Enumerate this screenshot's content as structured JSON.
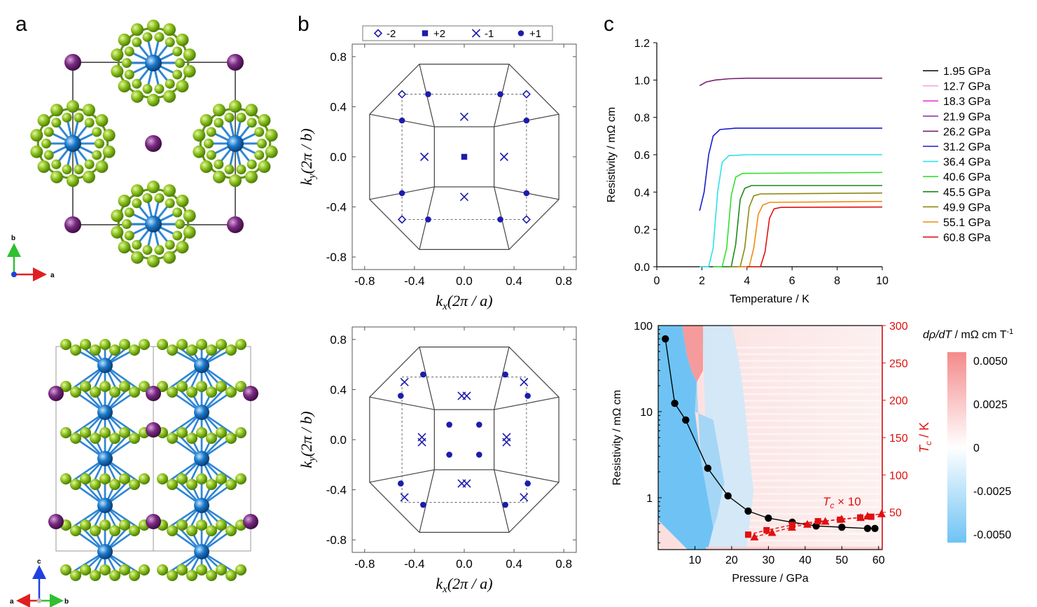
{
  "panels": {
    "a": "a",
    "b": "b",
    "c": "c"
  },
  "panel_a": {
    "axes_top": {
      "y_label": "b",
      "x_label": "a"
    },
    "axes_bottom": {
      "y_label": "c",
      "left_label": "a",
      "right_label": "b"
    },
    "colors": {
      "ligand": "#8fc31f",
      "ligand_dark": "#5e8d10",
      "metal": "#1a78c8",
      "cation": "#7a2a82",
      "bond": "#2f86d4"
    }
  },
  "panel_b": {
    "legend": [
      {
        "symbol": "diamond-open",
        "label": "-2"
      },
      {
        "symbol": "square",
        "label": "+2"
      },
      {
        "symbol": "cross",
        "label": "-1"
      },
      {
        "symbol": "circle",
        "label": "+1"
      }
    ],
    "marker_color": "#1c1cae",
    "x_label_pre": "k",
    "x_label_sub": "x",
    "x_label_post": "(2π / a)",
    "y_label_pre": "k",
    "y_label_sub": "y",
    "y_label_post": "(2π / b)",
    "ticks": [
      "-0.8",
      "-0.4",
      "0.0",
      "0.4",
      "0.8"
    ]
  },
  "chart_data": [
    {
      "type": "scatter",
      "id": "bz-top",
      "xlim": [
        -0.9,
        0.9
      ],
      "ylim": [
        -0.9,
        0.9
      ],
      "xticks": [
        -0.8,
        -0.4,
        0.0,
        0.4,
        0.8
      ],
      "yticks": [
        -0.8,
        -0.4,
        0.0,
        0.4,
        0.8
      ],
      "outer_octagon": [
        [
          -0.36,
          0.74
        ],
        [
          0.36,
          0.74
        ],
        [
          0.76,
          0.34
        ],
        [
          0.76,
          -0.34
        ],
        [
          0.36,
          -0.74
        ],
        [
          -0.36,
          -0.74
        ],
        [
          -0.76,
          -0.34
        ],
        [
          -0.76,
          0.34
        ]
      ],
      "inner_square": [
        -0.24,
        0.24
      ],
      "dashed_square": [
        -0.5,
        0.5
      ],
      "series": [
        {
          "symbol": "diamond-open",
          "label": "-2",
          "points": [
            [
              -0.5,
              0.5
            ],
            [
              0.5,
              0.5
            ],
            [
              -0.5,
              -0.5
            ],
            [
              0.5,
              -0.5
            ]
          ]
        },
        {
          "symbol": "square",
          "label": "+2",
          "points": [
            [
              0,
              0
            ]
          ]
        },
        {
          "symbol": "cross",
          "label": "-1",
          "points": [
            [
              0,
              0.32
            ],
            [
              0,
              -0.32
            ],
            [
              -0.32,
              0
            ],
            [
              0.32,
              0
            ]
          ]
        },
        {
          "symbol": "circle",
          "label": "+1",
          "points": [
            [
              -0.29,
              0.5
            ],
            [
              0.29,
              0.5
            ],
            [
              -0.29,
              -0.5
            ],
            [
              0.29,
              -0.5
            ],
            [
              -0.5,
              0.29
            ],
            [
              -0.5,
              -0.29
            ],
            [
              0.5,
              0.29
            ],
            [
              0.5,
              -0.29
            ]
          ]
        }
      ]
    },
    {
      "type": "scatter",
      "id": "bz-bottom",
      "xlim": [
        -0.9,
        0.9
      ],
      "ylim": [
        -0.9,
        0.9
      ],
      "xticks": [
        -0.8,
        -0.4,
        0.0,
        0.4,
        0.8
      ],
      "yticks": [
        -0.8,
        -0.4,
        0.0,
        0.4,
        0.8
      ],
      "outer_octagon": [
        [
          -0.36,
          0.74
        ],
        [
          0.36,
          0.74
        ],
        [
          0.76,
          0.34
        ],
        [
          0.76,
          -0.34
        ],
        [
          0.36,
          -0.74
        ],
        [
          -0.36,
          -0.74
        ],
        [
          -0.76,
          -0.34
        ],
        [
          -0.76,
          0.34
        ]
      ],
      "inner_square": [
        -0.24,
        0.24
      ],
      "dashed_square": [
        -0.5,
        0.5
      ],
      "series": [
        {
          "symbol": "cross",
          "label": "-1",
          "points": [
            [
              -0.48,
              0.46
            ],
            [
              0.48,
              0.46
            ],
            [
              -0.48,
              -0.46
            ],
            [
              0.48,
              -0.46
            ],
            [
              -0.02,
              0.35
            ],
            [
              0.02,
              0.35
            ],
            [
              -0.02,
              -0.35
            ],
            [
              0.02,
              -0.35
            ],
            [
              -0.34,
              0.02
            ],
            [
              -0.34,
              -0.02
            ],
            [
              0.34,
              0.02
            ],
            [
              0.34,
              -0.02
            ]
          ]
        },
        {
          "symbol": "circle",
          "label": "+1",
          "points": [
            [
              -0.33,
              0.52
            ],
            [
              0.33,
              0.52
            ],
            [
              -0.33,
              -0.52
            ],
            [
              0.33,
              -0.52
            ],
            [
              -0.51,
              0.35
            ],
            [
              -0.51,
              -0.35
            ],
            [
              0.51,
              0.35
            ],
            [
              0.51,
              -0.35
            ],
            [
              -0.12,
              0.12
            ],
            [
              0.12,
              0.12
            ],
            [
              -0.12,
              -0.12
            ],
            [
              0.12,
              -0.12
            ]
          ]
        }
      ]
    },
    {
      "type": "line",
      "id": "resistivity-temperature",
      "xlabel": "Temperature / K",
      "ylabel": "Resistivity / mΩ cm",
      "xlim": [
        0,
        10
      ],
      "ylim": [
        0,
        1.2
      ],
      "xticks": [
        0,
        2,
        4,
        6,
        8,
        10
      ],
      "yticks": [
        0.0,
        0.2,
        0.4,
        0.6,
        0.8,
        1.0,
        1.2
      ],
      "tick_labels_x": [
        "0",
        "2",
        "4",
        "6",
        "8",
        "10"
      ],
      "tick_labels_y": [
        "0.0",
        "0.2",
        "0.4",
        "0.6",
        "0.8",
        "1.0",
        "1.2"
      ],
      "legend_position": "right",
      "series": [
        {
          "name": "1.95 GPa",
          "color": "#000000",
          "points": []
        },
        {
          "name": "12.7 GPa",
          "color": "#ff9ee0",
          "points": []
        },
        {
          "name": "18.3 GPa",
          "color": "#e040d0",
          "points": []
        },
        {
          "name": "21.9 GPa",
          "color": "#8a3fb0",
          "points": []
        },
        {
          "name": "26.2 GPa",
          "color": "#7a1e6e",
          "points": [
            [
              1.9,
              0.97
            ],
            [
              2.2,
              0.99
            ],
            [
              2.6,
              1.0
            ],
            [
              3.2,
              1.007
            ],
            [
              4,
              1.01
            ],
            [
              10,
              1.01
            ]
          ]
        },
        {
          "name": "31.2 GPa",
          "color": "#1a1ad0",
          "points": [
            [
              1.9,
              0.3
            ],
            [
              2.1,
              0.4
            ],
            [
              2.3,
              0.6
            ],
            [
              2.5,
              0.7
            ],
            [
              2.8,
              0.735
            ],
            [
              3.5,
              0.742
            ],
            [
              10,
              0.742
            ]
          ]
        },
        {
          "name": "36.4 GPa",
          "color": "#2ee0e8",
          "points": [
            [
              1.9,
              0
            ],
            [
              2.3,
              0.0
            ],
            [
              2.5,
              0.1
            ],
            [
              2.7,
              0.4
            ],
            [
              2.9,
              0.56
            ],
            [
              3.2,
              0.595
            ],
            [
              4,
              0.6
            ],
            [
              10,
              0.6
            ]
          ]
        },
        {
          "name": "40.6 GPa",
          "color": "#30e030",
          "points": [
            [
              2.5,
              0
            ],
            [
              2.9,
              0
            ],
            [
              3.1,
              0.1
            ],
            [
              3.3,
              0.38
            ],
            [
              3.5,
              0.48
            ],
            [
              3.8,
              0.5
            ],
            [
              10,
              0.505
            ]
          ]
        },
        {
          "name": "45.5 GPa",
          "color": "#1a8a1a",
          "points": [
            [
              2.9,
              0
            ],
            [
              3.3,
              0
            ],
            [
              3.5,
              0.12
            ],
            [
              3.7,
              0.36
            ],
            [
              3.9,
              0.42
            ],
            [
              4.2,
              0.435
            ],
            [
              10,
              0.435
            ]
          ]
        },
        {
          "name": "49.9 GPa",
          "color": "#8a8a10",
          "points": [
            [
              3.2,
              0
            ],
            [
              3.7,
              0
            ],
            [
              3.9,
              0.1
            ],
            [
              4.1,
              0.32
            ],
            [
              4.3,
              0.38
            ],
            [
              4.6,
              0.39
            ],
            [
              10,
              0.395
            ]
          ]
        },
        {
          "name": "55.1 GPa",
          "color": "#f08a10",
          "points": [
            [
              3.6,
              0
            ],
            [
              4.1,
              0
            ],
            [
              4.3,
              0.1
            ],
            [
              4.5,
              0.28
            ],
            [
              4.7,
              0.33
            ],
            [
              5.0,
              0.345
            ],
            [
              10,
              0.35
            ]
          ]
        },
        {
          "name": "60.8 GPa",
          "color": "#e01010",
          "points": [
            [
              4.0,
              0
            ],
            [
              4.6,
              0
            ],
            [
              4.8,
              0.08
            ],
            [
              5.0,
              0.26
            ],
            [
              5.2,
              0.31
            ],
            [
              5.5,
              0.318
            ],
            [
              10,
              0.32
            ]
          ]
        }
      ]
    },
    {
      "type": "heatmap",
      "id": "phase-diagram",
      "xlabel": "Pressure / GPa",
      "ylabel": "Resistivity / mΩ cm",
      "y2label_pre": "T",
      "y2label_sub": "c",
      "y2label_post": " / K",
      "xlim": [
        0,
        61
      ],
      "ylim_log": [
        0.25,
        100
      ],
      "y2lim": [
        0,
        300
      ],
      "xticks": [
        10,
        20,
        30,
        40,
        50,
        60
      ],
      "yticks_log": [
        1,
        10,
        100
      ],
      "tick_labels_y": [
        "1",
        "10",
        "100"
      ],
      "y2ticks": [
        50,
        100,
        150,
        200,
        250,
        300
      ],
      "annotation_pre": "T",
      "annotation_sub": "c",
      "annotation_post": " × 10",
      "colorbar": {
        "title_pre": "dρ/dT",
        "title_post": " / mΩ cm T",
        "title_sup": "-1",
        "ticks": [
          "0.0050",
          "0.0025",
          "0",
          "-0.0025",
          "-0.0050"
        ],
        "colors": {
          "high": "#f48a8a",
          "mid": "#ffffff",
          "low": "#6ec3f4"
        }
      },
      "series": [
        {
          "name": "Resistivity",
          "axis": "left",
          "color": "#000000",
          "marker": "circle",
          "points": [
            [
              1.95,
              70
            ],
            [
              4.5,
              12.5
            ],
            [
              7.5,
              8
            ],
            [
              13.5,
              2.2
            ],
            [
              19,
              1.05
            ],
            [
              24.5,
              0.7
            ],
            [
              30,
              0.58
            ],
            [
              36.5,
              0.52
            ],
            [
              43,
              0.47
            ],
            [
              50,
              0.455
            ],
            [
              57,
              0.44
            ],
            [
              59,
              0.44
            ]
          ]
        },
        {
          "name": "Tc × 10 (square)",
          "axis": "right",
          "color": "#e01010",
          "marker": "square",
          "points": [
            [
              24.5,
              20
            ],
            [
              29.5,
              26
            ],
            [
              36.5,
              33
            ],
            [
              43.5,
              38
            ],
            [
              49.5,
              40
            ],
            [
              55,
              43
            ],
            [
              58,
              44
            ]
          ]
        },
        {
          "name": "Tc × 10 (triangle)",
          "axis": "right",
          "color": "#e01010",
          "marker": "triangle",
          "points": [
            [
              26.2,
              17
            ],
            [
              31,
              23
            ],
            [
              36.4,
              30
            ],
            [
              40.6,
              34
            ],
            [
              45.5,
              38
            ],
            [
              49.9,
              41
            ],
            [
              55.1,
              43
            ],
            [
              57,
              45
            ],
            [
              60.8,
              48
            ]
          ]
        }
      ]
    }
  ]
}
